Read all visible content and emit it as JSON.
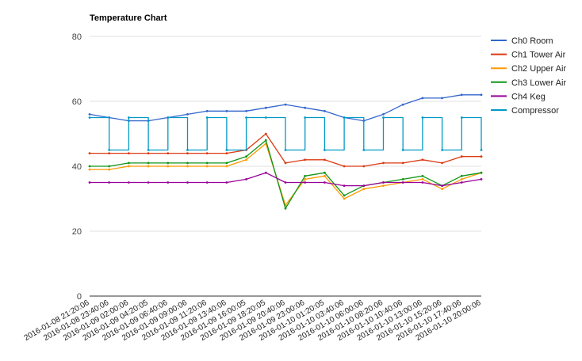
{
  "chart_data": {
    "type": "line",
    "title": "Temperature Chart",
    "xlabel": "",
    "ylabel": "",
    "ylim": [
      0,
      80
    ],
    "yticks": [
      0,
      20,
      40,
      60,
      80
    ],
    "grid": true,
    "legend_position": "right",
    "x": [
      "2016-01-08 21:20:06",
      "2016-01-08 23:40:06",
      "2016-01-09 02:00:06",
      "2016-01-09 04:20:05",
      "2016-01-09 06:40:06",
      "2016-01-09 09:00:06",
      "2016-01-09 11:20:06",
      "2016-01-09 13:40:06",
      "2016-01-09 16:00:05",
      "2016-01-09 18:20:05",
      "2016-01-09 20:40:06",
      "2016-01-09 23:00:06",
      "2016-01-10 01:20:05",
      "2016-01-10 03:40:06",
      "2016-01-10 06:00:06",
      "2016-01-10 08:20:06",
      "2016-01-10 10:40:06",
      "2016-01-10 13:00:06",
      "2016-01-10 15:20:06",
      "2016-01-10 17:40:06",
      "2016-01-10 20:00:06"
    ],
    "series": [
      {
        "name": "Ch0 Room",
        "color": "#3366cc",
        "values": [
          56,
          55,
          54,
          54,
          55,
          56,
          57,
          57,
          57,
          58,
          59,
          58,
          57,
          55,
          54,
          56,
          59,
          61,
          61,
          62,
          62
        ]
      },
      {
        "name": "Ch1 Tower Air",
        "color": "#dc3912",
        "values": [
          44,
          44,
          44,
          44,
          44,
          44,
          44,
          44,
          45,
          50,
          41,
          42,
          42,
          40,
          40,
          41,
          41,
          42,
          41,
          43,
          43
        ]
      },
      {
        "name": "Ch2 Upper Air",
        "color": "#ff9900",
        "values": [
          39,
          39,
          40,
          40,
          40,
          40,
          40,
          40,
          42,
          47,
          28,
          36,
          37,
          30,
          33,
          34,
          35,
          36,
          33,
          36,
          38
        ]
      },
      {
        "name": "Ch3 Lower Air",
        "color": "#109618",
        "values": [
          40,
          40,
          41,
          41,
          41,
          41,
          41,
          41,
          43,
          48,
          27,
          37,
          38,
          31,
          34,
          35,
          36,
          37,
          34,
          37,
          38
        ]
      },
      {
        "name": "Ch4 Keg",
        "color": "#990099",
        "values": [
          35,
          35,
          35,
          35,
          35,
          35,
          35,
          35,
          36,
          38,
          35,
          35,
          35,
          34,
          34,
          35,
          35,
          35,
          34,
          35,
          36
        ]
      },
      {
        "name": "Compressor",
        "color": "#0099c6",
        "values": [
          55,
          45,
          55,
          45,
          55,
          45,
          55,
          45,
          55,
          55,
          45,
          55,
          45,
          55,
          45,
          55,
          45,
          55,
          45,
          55,
          45
        ]
      }
    ]
  }
}
